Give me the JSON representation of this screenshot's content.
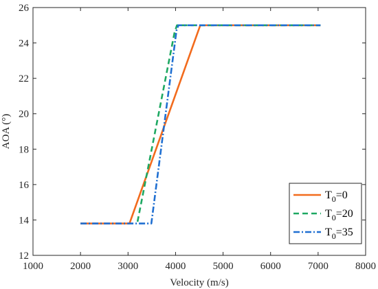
{
  "chart_data": {
    "type": "line",
    "xlabel": "Velocity (m/s)",
    "ylabel": "AOA (°)",
    "xlim": [
      1000,
      8000
    ],
    "ylim": [
      12,
      26
    ],
    "xticks": [
      1000,
      2000,
      3000,
      4000,
      5000,
      6000,
      7000,
      8000
    ],
    "yticks": [
      12,
      14,
      16,
      18,
      20,
      22,
      24,
      26
    ],
    "grid": false,
    "legend_position": "bottom-right",
    "series": [
      {
        "name_main": "T",
        "name_sub": "0",
        "name_rest": "=0",
        "color": "#F26B1D",
        "style": "solid",
        "x": [
          2000,
          3030,
          4520,
          7050
        ],
        "y": [
          13.8,
          13.8,
          25.0,
          25.0
        ]
      },
      {
        "name_main": "T",
        "name_sub": "0",
        "name_rest": "=20",
        "color": "#1DA862",
        "style": "dashed",
        "x": [
          3200,
          3980,
          4030,
          7050
        ],
        "y": [
          13.9,
          24.6,
          25.0,
          25.0
        ]
      },
      {
        "name_main": "T",
        "name_sub": "0",
        "name_rest": "=35",
        "color": "#1F6FD1",
        "style": "dashdot",
        "x": [
          2000,
          3490,
          4020,
          4060,
          7050
        ],
        "y": [
          13.8,
          13.8,
          24.7,
          25.0,
          25.0
        ]
      }
    ]
  }
}
